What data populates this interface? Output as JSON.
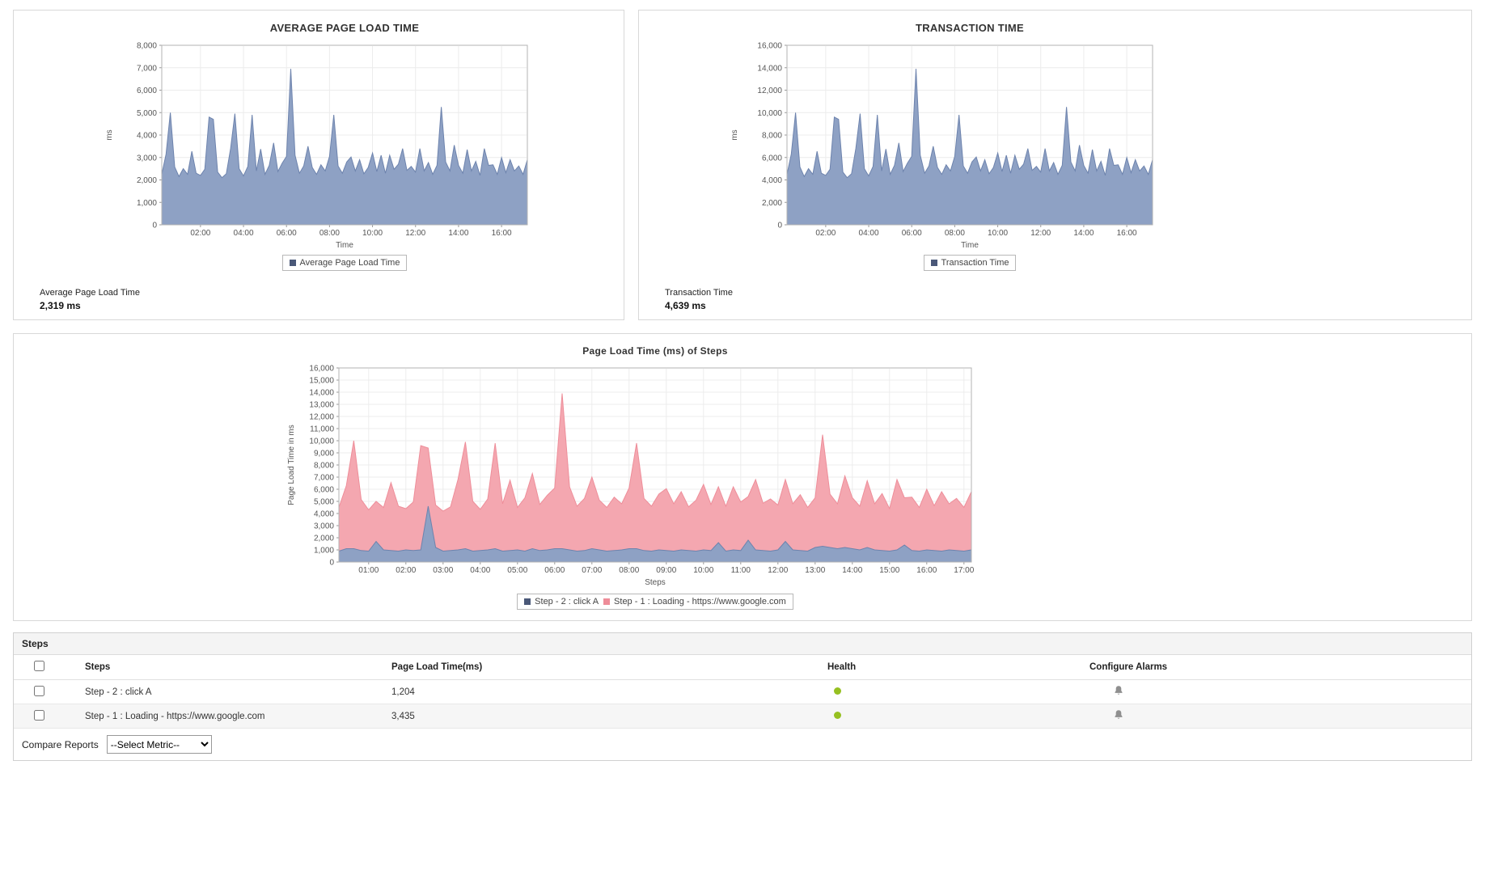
{
  "panels": {
    "avg_page_load": {
      "stat_label": "Average Page Load Time",
      "stat_value": "2,319 ms"
    },
    "transaction": {
      "stat_label": "Transaction Time",
      "stat_value": "4,639 ms"
    }
  },
  "chart_data": [
    {
      "type": "area",
      "title": "AVERAGE PAGE LOAD TIME",
      "xlabel": "Time",
      "ylabel": "ms",
      "ylim": [
        0,
        8000
      ],
      "ytick_step": 1000,
      "xlim": [
        0.2,
        17.2
      ],
      "grid": true,
      "legend_position": "bottom",
      "xticks": [
        {
          "t": 2,
          "label": "02:00"
        },
        {
          "t": 4,
          "label": "04:00"
        },
        {
          "t": 6,
          "label": "06:00"
        },
        {
          "t": 8,
          "label": "08:00"
        },
        {
          "t": 10,
          "label": "10:00"
        },
        {
          "t": 12,
          "label": "12:00"
        },
        {
          "t": 14,
          "label": "14:00"
        },
        {
          "t": 16,
          "label": "16:00"
        }
      ],
      "series": [
        {
          "name": "Average Page Load Time",
          "color": "#8ea1c4",
          "stroke": "#6d83ad",
          "marker": "#4a5878",
          "values": [
            2250,
            3150,
            5000,
            2575,
            2150,
            2500,
            2250,
            3275,
            2300,
            2200,
            2475,
            4800,
            4700,
            2350,
            2100,
            2275,
            3400,
            4950,
            2500,
            2175,
            2600,
            4900,
            2400,
            3375,
            2250,
            2650,
            3650,
            2375,
            2750,
            3050,
            6950,
            3100,
            2300,
            2625,
            3500,
            2550,
            2250,
            2675,
            2400,
            3050,
            4900,
            2625,
            2300,
            2800,
            3025,
            2400,
            2900,
            2275,
            2550,
            3200,
            2375,
            3100,
            2300,
            3100,
            2475,
            2700,
            3400,
            2425,
            2600,
            2350,
            3400,
            2400,
            2775,
            2250,
            2650,
            5250,
            2800,
            2400,
            3550,
            2650,
            2300,
            3350,
            2400,
            2825,
            2200,
            3400,
            2650,
            2675,
            2250,
            3000,
            2325,
            2900,
            2400,
            2625,
            2250,
            2900
          ]
        }
      ]
    },
    {
      "type": "area",
      "title": "TRANSACTION TIME",
      "xlabel": "Time",
      "ylabel": "ms",
      "ylim": [
        0,
        16000
      ],
      "ytick_step": 2000,
      "xlim": [
        0.2,
        17.2
      ],
      "grid": true,
      "legend_position": "bottom",
      "xticks": [
        {
          "t": 2,
          "label": "02:00"
        },
        {
          "t": 4,
          "label": "04:00"
        },
        {
          "t": 6,
          "label": "06:00"
        },
        {
          "t": 8,
          "label": "08:00"
        },
        {
          "t": 10,
          "label": "10:00"
        },
        {
          "t": 12,
          "label": "12:00"
        },
        {
          "t": 14,
          "label": "14:00"
        },
        {
          "t": 16,
          "label": "16:00"
        }
      ],
      "series": [
        {
          "name": "Transaction Time",
          "color": "#8ea1c4",
          "stroke": "#6d83ad",
          "marker": "#4a5878",
          "values": [
            4500,
            6300,
            10000,
            5150,
            4300,
            5000,
            4500,
            6550,
            4600,
            4400,
            4950,
            9600,
            9400,
            4700,
            4200,
            4550,
            6800,
            9900,
            5000,
            4350,
            5200,
            9800,
            4800,
            6750,
            4500,
            5300,
            7300,
            4750,
            5500,
            6100,
            13900,
            6200,
            4600,
            5250,
            7000,
            5100,
            4500,
            5350,
            4800,
            6100,
            9800,
            5250,
            4600,
            5600,
            6050,
            4800,
            5800,
            4550,
            5100,
            6400,
            4750,
            6200,
            4600,
            6200,
            4950,
            5400,
            6800,
            4850,
            5200,
            4700,
            6800,
            4800,
            5550,
            4500,
            5300,
            10500,
            5600,
            4800,
            7100,
            5300,
            4600,
            6700,
            4800,
            5650,
            4400,
            6800,
            5300,
            5350,
            4500,
            6000,
            4650,
            5800,
            4800,
            5250,
            4500,
            5800
          ]
        }
      ]
    },
    {
      "type": "area",
      "stacked": true,
      "title": "Page Load Time (ms) of Steps",
      "xlabel": "Steps",
      "ylabel": "Page Load Time in ms",
      "ylim": [
        0,
        16000
      ],
      "ytick_step": 1000,
      "xlim": [
        0.2,
        17.2
      ],
      "grid": true,
      "legend_position": "bottom",
      "xticks": [
        {
          "t": 1,
          "label": "01:00"
        },
        {
          "t": 2,
          "label": "02:00"
        },
        {
          "t": 3,
          "label": "03:00"
        },
        {
          "t": 4,
          "label": "04:00"
        },
        {
          "t": 5,
          "label": "05:00"
        },
        {
          "t": 6,
          "label": "06:00"
        },
        {
          "t": 7,
          "label": "07:00"
        },
        {
          "t": 8,
          "label": "08:00"
        },
        {
          "t": 9,
          "label": "09:00"
        },
        {
          "t": 10,
          "label": "10:00"
        },
        {
          "t": 11,
          "label": "11:00"
        },
        {
          "t": 12,
          "label": "12:00"
        },
        {
          "t": 13,
          "label": "13:00"
        },
        {
          "t": 14,
          "label": "14:00"
        },
        {
          "t": 15,
          "label": "15:00"
        },
        {
          "t": 16,
          "label": "16:00"
        },
        {
          "t": 17,
          "label": "17:00"
        }
      ],
      "series": [
        {
          "name": "Step - 2 : click A",
          "color": "#8ea1c4",
          "stroke": "#6d83ad",
          "marker": "#4a5878",
          "values": [
            900,
            1100,
            1100,
            950,
            900,
            1700,
            1000,
            950,
            900,
            1000,
            950,
            1000,
            4600,
            1200,
            900,
            950,
            1000,
            1100,
            900,
            950,
            1000,
            1100,
            900,
            950,
            1000,
            900,
            1100,
            950,
            1000,
            1100,
            1100,
            1000,
            900,
            950,
            1100,
            1000,
            900,
            950,
            1000,
            1100,
            1100,
            950,
            900,
            1000,
            950,
            900,
            1000,
            950,
            900,
            1000,
            950,
            1600,
            900,
            1000,
            950,
            1800,
            1000,
            950,
            900,
            1000,
            1700,
            1000,
            950,
            900,
            1200,
            1300,
            1200,
            1100,
            1200,
            1100,
            1000,
            1200,
            1000,
            950,
            900,
            1000,
            1400,
            950,
            900,
            1000,
            950,
            900,
            1000,
            950,
            900,
            1000
          ]
        },
        {
          "name": "Step - 1 : Loading - https://www.google.com",
          "color": "#f4a7b0",
          "stroke": "#ee8e9a",
          "marker": "#ee8d99",
          "values": [
            3600,
            5200,
            8900,
            4200,
            3400,
            3300,
            3500,
            5600,
            3700,
            3400,
            4000,
            8600,
            4800,
            3500,
            3300,
            3600,
            5800,
            8800,
            4100,
            3400,
            4200,
            8700,
            3900,
            5800,
            3500,
            4400,
            6200,
            3800,
            4500,
            5000,
            12800,
            5200,
            3700,
            4300,
            5900,
            4100,
            3600,
            4400,
            3800,
            5000,
            8700,
            4300,
            3700,
            4600,
            5100,
            3900,
            4800,
            3600,
            4200,
            5400,
            3800,
            4600,
            3700,
            5200,
            4000,
            3600,
            5800,
            3900,
            4300,
            3700,
            5100,
            3800,
            4600,
            3600,
            4100,
            9200,
            4400,
            3700,
            5900,
            4200,
            3600,
            5500,
            3800,
            4700,
            3500,
            5800,
            3900,
            4400,
            3600,
            5000,
            3700,
            4900,
            3800,
            4300,
            3600,
            4800
          ]
        }
      ]
    }
  ],
  "table": {
    "section_title": "Steps",
    "columns": [
      "Steps",
      "Page Load Time(ms)",
      "Health",
      "Configure Alarms"
    ],
    "rows": [
      {
        "step": "Step - 2 : click A",
        "load_time": "1,204",
        "health": "green"
      },
      {
        "step": "Step - 1 : Loading - https://www.google.com",
        "load_time": "3,435",
        "health": "green"
      }
    ]
  },
  "footer": {
    "compare_label": "Compare Reports",
    "select_value": "--Select Metric--"
  },
  "colors": {
    "health_green": "#96c021",
    "series_blue": "#8ea1c4",
    "series_pink": "#f4a7b0",
    "panel_border": "#d8d8d8"
  }
}
